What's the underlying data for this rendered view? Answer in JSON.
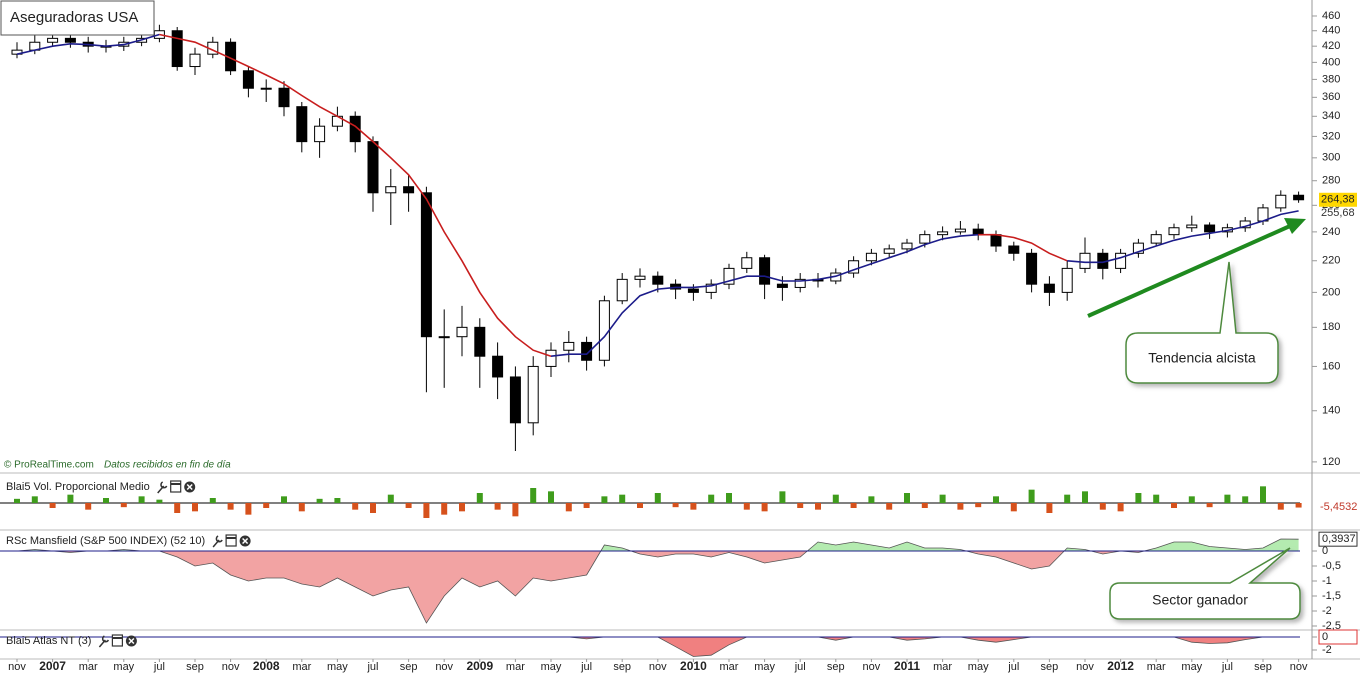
{
  "chart_data": [
    {
      "type": "candlestick",
      "title": "Aseguradoras USA",
      "source": "© ProRealTime.com",
      "note": "Datos recibidos en fin de día",
      "annotation": "Tendencia alcista",
      "categories": [
        "nov",
        null,
        "2007",
        null,
        "mar",
        null,
        "may",
        null,
        "jul",
        null,
        "sep",
        null,
        "nov",
        null,
        "2008",
        null,
        "mar",
        null,
        "may",
        null,
        "jul",
        null,
        "sep",
        null,
        "nov",
        null,
        "2009",
        null,
        "mar",
        null,
        "may",
        null,
        "jul",
        null,
        "sep",
        null,
        "nov",
        null,
        "2010",
        null,
        "mar",
        null,
        "may",
        null,
        "jul",
        null,
        "sep",
        null,
        "nov",
        null,
        "2011",
        null,
        "mar",
        null,
        "may",
        null,
        "jul",
        null,
        "sep",
        null,
        "nov",
        null,
        "2012",
        null,
        "mar",
        null,
        "may",
        null,
        "jul",
        null,
        "sep",
        null,
        "nov"
      ],
      "open": [
        410,
        415,
        425,
        430,
        425,
        420,
        420,
        425,
        430,
        440,
        395,
        410,
        425,
        390,
        370,
        370,
        350,
        315,
        330,
        340,
        315,
        270,
        275,
        270,
        175,
        175,
        180,
        165,
        155,
        135,
        160,
        168,
        172,
        163,
        195,
        208,
        210,
        205,
        202,
        200,
        205,
        215,
        222,
        205,
        203,
        208,
        207,
        212,
        220,
        225,
        228,
        232,
        238,
        240,
        242,
        238,
        230,
        225,
        205,
        200,
        215,
        225,
        215,
        225,
        232,
        238,
        243,
        245,
        240,
        243,
        248,
        258,
        268
      ],
      "high": [
        425,
        435,
        440,
        438,
        432,
        428,
        432,
        438,
        448,
        445,
        418,
        432,
        430,
        395,
        380,
        378,
        355,
        338,
        350,
        345,
        320,
        290,
        285,
        275,
        190,
        192,
        185,
        172,
        160,
        165,
        172,
        178,
        175,
        198,
        212,
        215,
        213,
        208,
        205,
        208,
        218,
        226,
        224,
        210,
        212,
        212,
        215,
        223,
        228,
        231,
        235,
        241,
        244,
        248,
        246,
        241,
        233,
        228,
        210,
        220,
        236,
        228,
        228,
        235,
        241,
        246,
        252,
        247,
        246,
        251,
        261,
        272,
        271
      ],
      "low": [
        405,
        410,
        420,
        418,
        412,
        412,
        414,
        420,
        425,
        390,
        385,
        405,
        385,
        360,
        355,
        340,
        305,
        300,
        325,
        305,
        255,
        245,
        255,
        148,
        150,
        165,
        150,
        145,
        124,
        130,
        155,
        162,
        158,
        160,
        193,
        203,
        200,
        196,
        195,
        196,
        202,
        212,
        196,
        195,
        200,
        203,
        205,
        209,
        217,
        222,
        225,
        229,
        234,
        238,
        234,
        226,
        220,
        200,
        192,
        195,
        212,
        208,
        212,
        222,
        230,
        235,
        240,
        235,
        236,
        240,
        245,
        255,
        262
      ],
      "close": [
        415,
        425,
        430,
        425,
        420,
        420,
        425,
        430,
        440,
        395,
        410,
        425,
        390,
        370,
        370,
        350,
        315,
        330,
        340,
        315,
        270,
        275,
        270,
        175,
        175,
        180,
        165,
        155,
        135,
        160,
        168,
        172,
        163,
        195,
        208,
        210,
        205,
        202,
        200,
        205,
        215,
        222,
        205,
        203,
        208,
        207,
        212,
        220,
        225,
        228,
        232,
        238,
        240,
        242,
        238,
        230,
        225,
        205,
        200,
        215,
        225,
        215,
        225,
        232,
        238,
        243,
        245,
        240,
        243,
        248,
        258,
        268,
        264.38
      ],
      "close_last_label": "264,38",
      "series": [
        {
          "color": "#1c1c8a",
          "last_label": "255,68",
          "values": [
            410,
            415,
            420,
            423,
            422,
            420,
            422,
            428,
            435,
            null,
            null,
            null,
            null,
            null,
            null,
            null,
            null,
            null,
            null,
            null,
            null,
            null,
            null,
            null,
            null,
            null,
            null,
            null,
            null,
            null,
            165,
            166,
            166,
            175,
            188,
            198,
            202,
            203,
            203,
            204,
            207,
            210,
            210,
            207,
            207,
            208,
            210,
            214,
            218,
            222,
            226,
            231,
            235,
            237,
            238,
            null,
            null,
            null,
            null,
            220,
            219,
            219,
            222,
            226,
            230,
            234,
            237,
            239,
            241,
            244,
            248,
            253,
            255.68
          ]
        },
        {
          "color": "#c81e1e",
          "values": [
            null,
            null,
            null,
            null,
            null,
            null,
            null,
            null,
            435,
            430,
            425,
            415,
            405,
            395,
            385,
            375,
            362,
            350,
            340,
            330,
            315,
            300,
            285,
            265,
            240,
            220,
            200,
            185,
            175,
            168,
            165,
            null,
            null,
            null,
            null,
            null,
            null,
            null,
            null,
            null,
            null,
            null,
            null,
            null,
            null,
            null,
            null,
            null,
            null,
            null,
            null,
            null,
            null,
            null,
            238,
            238,
            236,
            232,
            225,
            220,
            null,
            null,
            null,
            null,
            null,
            null,
            null,
            null,
            null,
            null,
            null,
            null,
            null
          ]
        }
      ],
      "yscale": "log",
      "ylim": [
        116.4,
        482.7
      ],
      "yticks": [
        120,
        140,
        160,
        180,
        200,
        220,
        240,
        260,
        280,
        300,
        320,
        340,
        360,
        380,
        400,
        420,
        440,
        460
      ]
    },
    {
      "type": "bar",
      "title": "Blai5 Vol. Proporcional Medio",
      "up_color": "#3f9c1c",
      "down_color": "#d6511c",
      "ylim": [
        -30,
        30
      ],
      "values": [
        5,
        8,
        -6,
        10,
        -8,
        6,
        -5,
        8,
        4,
        -12,
        -10,
        6,
        -8,
        -14,
        -6,
        8,
        -10,
        5,
        6,
        -8,
        -12,
        10,
        -6,
        -18,
        -14,
        -10,
        12,
        -8,
        -16,
        18,
        14,
        -10,
        -6,
        8,
        10,
        -6,
        12,
        -5,
        -8,
        10,
        12,
        -8,
        -10,
        14,
        -6,
        -8,
        10,
        -6,
        8,
        -8,
        12,
        -6,
        10,
        -8,
        -5,
        8,
        -10,
        16,
        -12,
        10,
        14,
        -8,
        -10,
        12,
        10,
        -6,
        8,
        -5,
        10,
        8,
        20,
        -8,
        -5.4532
      ],
      "last_label": "-5,4532"
    },
    {
      "type": "area",
      "title": "RSc Mansfield (S&P 500 INDEX) (52 10)",
      "annotation": "Sector ganador",
      "pos_color": "#b4ebb0",
      "neg_color": "#f2a3a3",
      "ylim": [
        -2.6,
        0.633
      ],
      "yticks": [
        0,
        {
          "value": -0.5,
          "label": "-0,5"
        },
        -1,
        {
          "value": -1.5,
          "label": "-1,5"
        },
        -2,
        {
          "value": -2.5,
          "label": "-2,5"
        }
      ],
      "values": [
        0,
        0.05,
        0,
        -0.05,
        0,
        0,
        0.05,
        0,
        0,
        -0.2,
        -0.5,
        -0.4,
        -0.8,
        -1,
        -0.9,
        -0.9,
        -1.1,
        -1.2,
        -0.9,
        -1.2,
        -1.5,
        -1.3,
        -1.2,
        -2.4,
        -1.5,
        -0.9,
        -1.2,
        -1,
        -1.5,
        -0.9,
        -1,
        -0.9,
        -0.8,
        0.2,
        0.1,
        -0.1,
        -0.2,
        -0.1,
        -0.1,
        -0.2,
        -0.05,
        -0.2,
        -0.4,
        -0.3,
        -0.2,
        0.3,
        0.2,
        0.3,
        0.2,
        0.1,
        0.3,
        0.1,
        0.1,
        0.05,
        -0.1,
        -0.2,
        -0.4,
        -0.6,
        -0.5,
        0.1,
        0.05,
        -0.1,
        0,
        -0.05,
        0.1,
        0.3,
        0.3,
        0.15,
        0.1,
        0.05,
        0.1,
        0.4,
        0.3937
      ],
      "last_label": "0,3937"
    },
    {
      "type": "area",
      "title": "Blai5 Atlas NT (3)",
      "pos_color": "#b4ebb0",
      "neg_color": "#f08080",
      "ylim": [
        -3.08,
        0.77
      ],
      "yticks": [
        0,
        -2
      ],
      "values": [
        0,
        0,
        0,
        0,
        0,
        0,
        0,
        0,
        0,
        0,
        0,
        0,
        0,
        0,
        0,
        0,
        0,
        0,
        0,
        0,
        0,
        0,
        0,
        0,
        0,
        0,
        0,
        0,
        0,
        0,
        0,
        0,
        -0.3,
        0,
        0,
        0,
        0,
        -1.5,
        -3,
        -2.8,
        -1.2,
        0,
        0,
        0,
        0,
        0,
        -0.5,
        0,
        0,
        0,
        -0.5,
        -0.3,
        0,
        0,
        -0.5,
        -0.8,
        -0.4,
        0,
        0,
        0,
        0,
        0,
        0,
        0,
        0,
        0,
        -0.8,
        -1,
        -0.9,
        -0.4,
        0,
        0,
        0
      ],
      "last_label": "0"
    }
  ]
}
